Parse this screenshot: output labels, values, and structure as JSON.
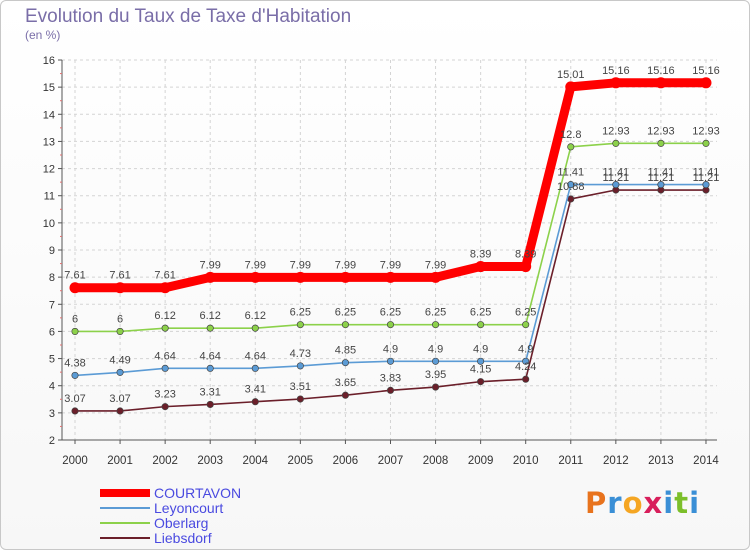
{
  "chart_data": {
    "type": "line",
    "title": "Evolution du Taux de Taxe d'Habitation",
    "subtitle": "(en %)",
    "x": [
      "2000",
      "2001",
      "2002",
      "2003",
      "2004",
      "2005",
      "2006",
      "2007",
      "2008",
      "2009",
      "2010",
      "2011",
      "2012",
      "2013",
      "2014"
    ],
    "ylim": [
      2,
      16
    ],
    "yticks": [
      2,
      3,
      4,
      5,
      6,
      7,
      8,
      9,
      10,
      11,
      12,
      13,
      14,
      15,
      16
    ],
    "grid": true,
    "series": [
      {
        "name": "COURTAVON",
        "color": "#ff0000",
        "values": [
          7.61,
          7.61,
          7.61,
          7.99,
          7.99,
          7.99,
          7.99,
          7.99,
          7.99,
          8.39,
          8.39,
          15.01,
          15.16,
          15.16,
          15.16
        ],
        "labels": [
          "7.61",
          "7.61",
          "7.61",
          "7.99",
          "7.99",
          "7.99",
          "7.99",
          "7.99",
          "7.99",
          "8.39",
          "8.39",
          "15.01",
          "15.16",
          "15.16",
          "15.16"
        ]
      },
      {
        "name": "Leyoncourt",
        "color": "#5b9bd5",
        "values": [
          4.38,
          4.49,
          4.64,
          4.64,
          4.64,
          4.73,
          4.85,
          4.9,
          4.9,
          4.9,
          4.9,
          11.41,
          11.41,
          11.41,
          11.41
        ],
        "labels": [
          "4.38",
          "4.49",
          "4.64",
          "4.64",
          "4.64",
          "4.73",
          "4.85",
          "4.9",
          "4.9",
          "4.9",
          "4.9",
          "11.41",
          "11.41",
          "11.41",
          "11.41"
        ]
      },
      {
        "name": "Oberlarg",
        "color": "#8cd14a",
        "values": [
          6,
          6,
          6.12,
          6.12,
          6.12,
          6.25,
          6.25,
          6.25,
          6.25,
          6.25,
          6.25,
          12.8,
          12.93,
          12.93,
          12.93
        ],
        "labels": [
          "6",
          "6",
          "6.12",
          "6.12",
          "6.12",
          "6.25",
          "6.25",
          "6.25",
          "6.25",
          "6.25",
          "6.25",
          "12.8",
          "12.93",
          "12.93",
          "12.93"
        ]
      },
      {
        "name": "Liebsdorf",
        "color": "#6b1f2a",
        "values": [
          3.07,
          3.07,
          3.23,
          3.31,
          3.41,
          3.51,
          3.65,
          3.83,
          3.95,
          4.15,
          4.24,
          10.88,
          11.21,
          11.21,
          11.21
        ],
        "labels": [
          "3.07",
          "3.07",
          "3.23",
          "3.31",
          "3.41",
          "3.51",
          "3.65",
          "3.83",
          "3.95",
          "4.15",
          "4.24",
          "10.88",
          "11.21",
          "11.21",
          "11.21"
        ]
      }
    ],
    "legend_position": "bottom-left"
  },
  "logo": {
    "letters": [
      "P",
      "r",
      "o",
      "x",
      "i",
      "t",
      "i"
    ],
    "colors": [
      "#e8731d",
      "#3a8fd6",
      "#f5a623",
      "#d81e5b",
      "#3a8fd6",
      "#7cbf2a",
      "#3a8fd6"
    ]
  }
}
